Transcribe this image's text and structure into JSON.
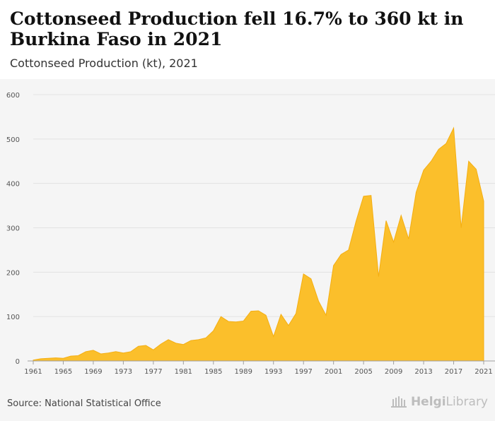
{
  "header": {
    "title": "Cottonseed Production fell 16.7% to 360 kt in Burkina Faso in 2021",
    "subtitle": "Cottonseed Production (kt), 2021"
  },
  "footer": {
    "source": "Source: National Statistical Office",
    "logo_part1": "Helgi",
    "logo_part2": "Library"
  },
  "colors": {
    "area": "#fbbf2b",
    "area_stroke": "#f4ae12",
    "grid": "#e2e2e2",
    "axis_text": "#555555"
  },
  "chart_data": {
    "type": "area",
    "title": "Cottonseed Production fell 16.7% to 360 kt in Burkina Faso in 2021",
    "subtitle": "Cottonseed Production (kt), 2021",
    "ylim": [
      0,
      600
    ],
    "yticks": [
      0,
      100,
      200,
      300,
      400,
      500,
      600
    ],
    "xticks": [
      1961,
      1965,
      1969,
      1973,
      1977,
      1981,
      1985,
      1989,
      1993,
      1997,
      2001,
      2005,
      2009,
      2013,
      2017,
      2021
    ],
    "grid": true,
    "x": [
      1961,
      1962,
      1963,
      1964,
      1965,
      1966,
      1967,
      1968,
      1969,
      1970,
      1971,
      1972,
      1973,
      1974,
      1975,
      1976,
      1977,
      1978,
      1979,
      1980,
      1981,
      1982,
      1983,
      1984,
      1985,
      1986,
      1987,
      1988,
      1989,
      1990,
      1991,
      1992,
      1993,
      1994,
      1995,
      1996,
      1997,
      1998,
      1999,
      2000,
      2001,
      2002,
      2003,
      2004,
      2005,
      2006,
      2007,
      2008,
      2009,
      2010,
      2011,
      2012,
      2013,
      2014,
      2015,
      2016,
      2017,
      2018,
      2019,
      2020,
      2021
    ],
    "values": [
      2,
      5,
      6,
      7,
      6,
      11,
      12,
      21,
      24,
      16,
      18,
      21,
      18,
      21,
      33,
      35,
      25,
      38,
      48,
      40,
      37,
      46,
      48,
      52,
      68,
      100,
      89,
      88,
      90,
      112,
      113,
      103,
      55,
      105,
      80,
      107,
      196,
      185,
      135,
      103,
      215,
      240,
      250,
      315,
      371,
      373,
      190,
      316,
      268,
      328,
      275,
      380,
      430,
      450,
      477,
      490,
      525,
      300,
      450,
      432,
      360
    ]
  }
}
